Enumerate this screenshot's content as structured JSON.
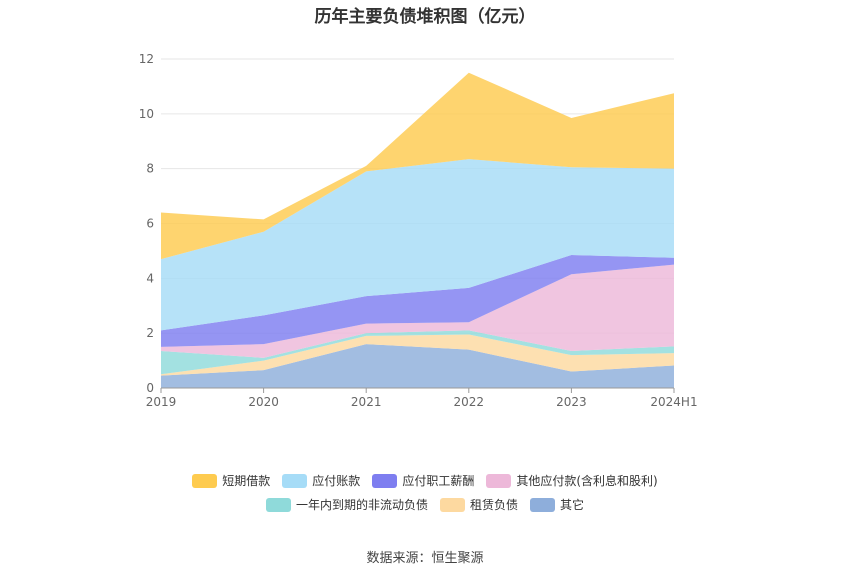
{
  "title": "历年主要负债堆积图（亿元）",
  "source": "数据来源：恒生聚源",
  "chart_data": {
    "type": "area",
    "stacked": true,
    "title": "历年主要负债堆积图（亿元）",
    "categories": [
      "2019",
      "2020",
      "2021",
      "2022",
      "2023",
      "2024H1"
    ],
    "ylim": [
      0,
      12
    ],
    "yticks": [
      0,
      2,
      4,
      6,
      8,
      10,
      12
    ],
    "grid": true,
    "legend_position": "bottom",
    "series": [
      {
        "name": "其它",
        "color": "#8eaedb",
        "values": [
          0.45,
          0.65,
          1.6,
          1.4,
          0.6,
          0.82
        ]
      },
      {
        "name": "租赁负债",
        "color": "#fdd9a0",
        "values": [
          0.05,
          0.35,
          0.3,
          0.55,
          0.6,
          0.45
        ]
      },
      {
        "name": "一年内到期的非流动负债",
        "color": "#8fdada",
        "values": [
          0.85,
          0.1,
          0.1,
          0.15,
          0.15,
          0.25
        ]
      },
      {
        "name": "其他应付款(含利息和股利)",
        "color": "#edb8d9",
        "values": [
          0.15,
          0.5,
          0.35,
          0.3,
          2.8,
          2.98
        ]
      },
      {
        "name": "应付职工薪酬",
        "color": "#7e7ef0",
        "values": [
          0.6,
          1.05,
          1.0,
          1.25,
          0.7,
          0.25
        ]
      },
      {
        "name": "应付账款",
        "color": "#a6dcf7",
        "values": [
          2.6,
          3.05,
          4.55,
          4.7,
          3.2,
          3.25
        ]
      },
      {
        "name": "短期借款",
        "color": "#fecb4f",
        "values": [
          1.7,
          0.45,
          0.2,
          3.15,
          1.8,
          2.75
        ]
      }
    ]
  }
}
